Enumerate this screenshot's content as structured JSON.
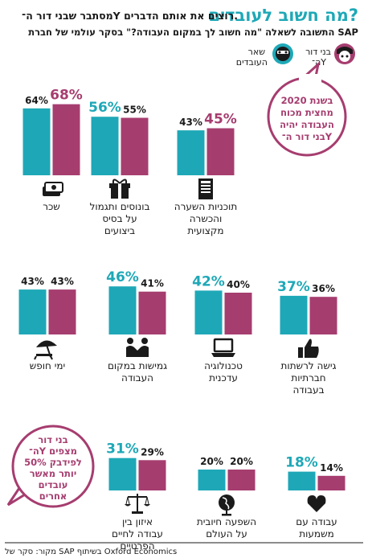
{
  "header": {
    "title": "מה חשוב לעובדים?",
    "subtitle": "מסתבר שבני דור ה־Y רוצים את אותם הדברים.",
    "question": "התשובה לשאלה \"מה חשוב לך במקום העבודה?\" בסקר עולמי של חברת SAP"
  },
  "legend": {
    "gen_y_line1": "בני דור",
    "gen_y_line2": "ה־Y",
    "others_line1": "שאר",
    "others_line2": "העובדים"
  },
  "bubble_top": [
    "בשנת 2020",
    "מחצית מכוח",
    "העבודה יהיה",
    "בני דור ה־Y"
  ],
  "bubble_bottom": [
    "בני דור",
    "ה־Y מצפים",
    "לפידבק 50%",
    "יותר מאשר",
    "עובדים",
    "אחרים"
  ],
  "footer": {
    "source": "מקור: סקר של SAP בשיתוף Oxford Economics"
  },
  "colors": {
    "others": "#1ea8b7",
    "gen_y": "#a63d6f",
    "title": "#1ea8b7",
    "bubble_border": "#a63d6f",
    "bubble_text": "#a63d6f",
    "text": "#1a1a1a"
  },
  "chart_data": {
    "type": "bar",
    "unit": "%",
    "series": [
      {
        "name": "שאר העובדים"
      },
      {
        "name": "בני דור ה־Y"
      }
    ],
    "categories": [
      {
        "label": [
          "שכר"
        ],
        "others": 64,
        "gen_y": 68,
        "icon": "money-icon"
      },
      {
        "label": [
          "בונוסים ותגמול",
          "על בסיס",
          "ביצועים"
        ],
        "others": 56,
        "gen_y": 55,
        "icon": "gift-icon"
      },
      {
        "label": [
          "תוכניות השערה",
          "והכשרה",
          "מקצועית"
        ],
        "others": 43,
        "gen_y": 45,
        "icon": "book-icon"
      },
      {
        "label": [
          "ימי חופש"
        ],
        "others": 43,
        "gen_y": 43,
        "icon": "beach-umbrella-icon"
      },
      {
        "label": [
          "גמישות במקום",
          "העבודה"
        ],
        "others": 46,
        "gen_y": 41,
        "icon": "handshake-icon"
      },
      {
        "label": [
          "טכנולוגיה",
          "עדכנית"
        ],
        "others": 42,
        "gen_y": 40,
        "icon": "laptop-icon"
      },
      {
        "label": [
          "גישה לרשתות",
          "חברתיות",
          "בעבודה"
        ],
        "others": 37,
        "gen_y": 36,
        "icon": "thumbs-up-icon"
      },
      {
        "label": [
          "איזון בין",
          "עבודה לחיים",
          "הפרטיים"
        ],
        "others": 31,
        "gen_y": 29,
        "icon": "scales-icon"
      },
      {
        "label": [
          "השפעה חיובית",
          "על העולם"
        ],
        "others": 20,
        "gen_y": 20,
        "icon": "globe-icon"
      },
      {
        "label": [
          "עבודה עם",
          "משמעות"
        ],
        "others": 18,
        "gen_y": 14,
        "icon": "heart-icon"
      }
    ]
  }
}
